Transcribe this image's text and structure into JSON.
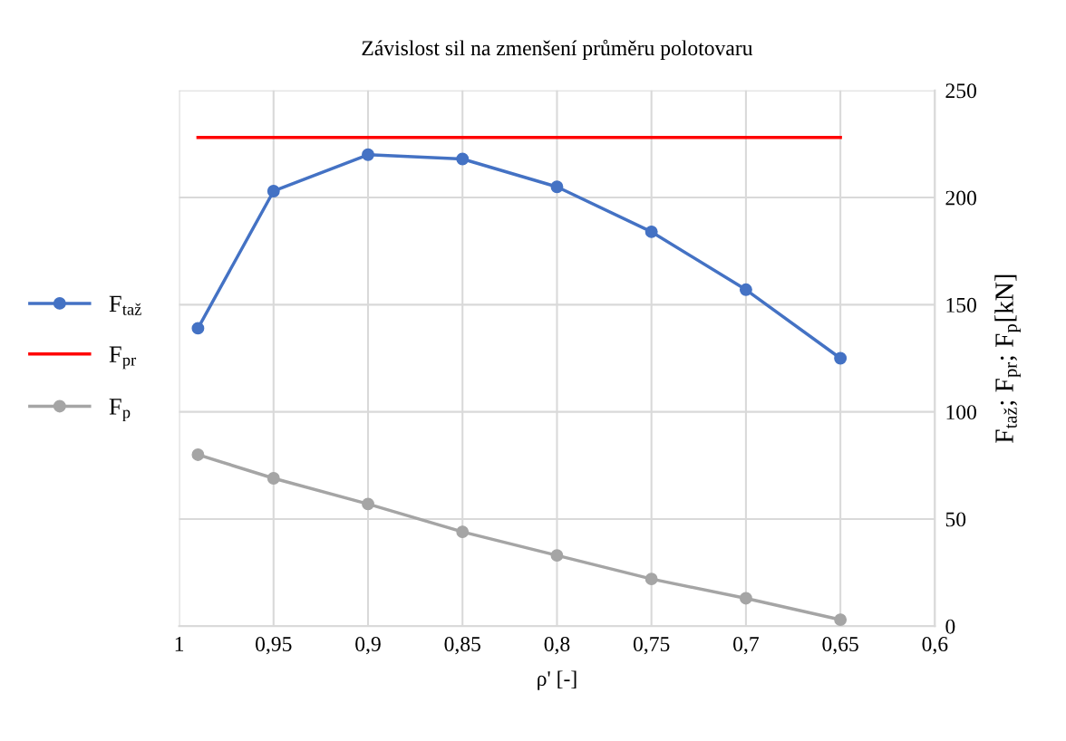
{
  "chart_data": {
    "type": "line",
    "title": "Závislost sil na zmenšení průměru polotovaru",
    "xlabel": "ρ' [-]",
    "ylabel": "F$_{taž}$; F$_{pr}$; F$_{p}$[kN]",
    "x": [
      0.99,
      0.95,
      0.9,
      0.85,
      0.8,
      0.75,
      0.7,
      0.65
    ],
    "series": [
      {
        "name": "F$_{taž}$",
        "color": "#4472c4",
        "marker": "circle",
        "values": [
          139,
          203,
          220,
          218,
          205,
          184,
          157,
          125
        ]
      },
      {
        "name": "F$_{pr}$",
        "color": "#ff0000",
        "marker": "none",
        "x": [
          0.99,
          0.65
        ],
        "values": [
          228,
          228
        ]
      },
      {
        "name": "F$_{p}$",
        "color": "#a5a5a5",
        "marker": "circle",
        "values": [
          80,
          69,
          57,
          44,
          33,
          22,
          13,
          3
        ]
      }
    ],
    "xlim": [
      1,
      0.6
    ],
    "xticks": [
      1,
      {
        "value": 0.95,
        "label": "0,95"
      },
      {
        "value": 0.9,
        "label": "0,9"
      },
      {
        "value": 0.85,
        "label": "0,85"
      },
      {
        "value": 0.8,
        "label": "0,8"
      },
      {
        "value": 0.75,
        "label": "0,75"
      },
      {
        "value": 0.7,
        "label": "0,7"
      },
      {
        "value": 0.65,
        "label": "0,65"
      },
      {
        "value": 0.6,
        "label": "0,6"
      }
    ],
    "ylim": [
      0,
      250
    ],
    "yticks": [
      0,
      50,
      100,
      150,
      200,
      250
    ],
    "grid": true,
    "legend": "left"
  }
}
